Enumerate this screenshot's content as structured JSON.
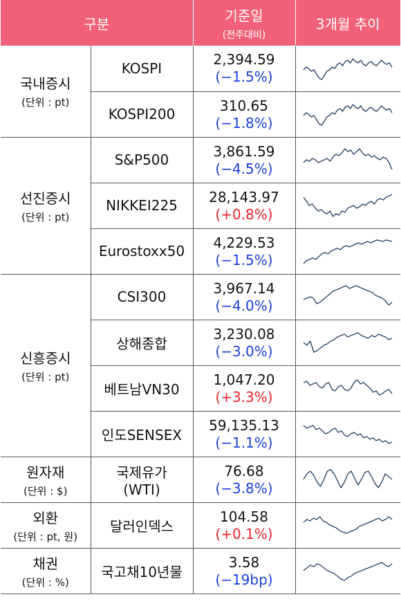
{
  "header": {
    "col1": "구분",
    "col3_main": "기준일",
    "col3_sub": "(전주대비)",
    "col4": "3개월 추이"
  },
  "groups": [
    {
      "name": "국내증시",
      "unit": "(단위 : pt)"
    },
    {
      "name": "선진증시",
      "unit": "(단위 : pt)"
    },
    {
      "name": "신흥증시",
      "unit": "(단위 : pt)"
    },
    {
      "name": "원자재",
      "unit": "(단위 : $)"
    },
    {
      "name": "외환",
      "unit": "(단위 : pt, 원)"
    },
    {
      "name": "채권",
      "unit": "(단위 : %)"
    }
  ],
  "rows": [
    {
      "name": "KOSPI",
      "value": "2,394.59",
      "change": "(−1.5%)",
      "dir": "neg"
    },
    {
      "name": "KOSPI200",
      "value": "310.65",
      "change": "(−1.8%)",
      "dir": "neg"
    },
    {
      "name": "S&P500",
      "value": "3,861.59",
      "change": "(−4.5%)",
      "dir": "neg"
    },
    {
      "name": "NIKKEI225",
      "value": "28,143.97",
      "change": "(+0.8%)",
      "dir": "pos"
    },
    {
      "name": "Eurostoxx50",
      "value": "4,229.53",
      "change": "(−1.5%)",
      "dir": "neg"
    },
    {
      "name": "CSI300",
      "value": "3,967.14",
      "change": "(−4.0%)",
      "dir": "neg"
    },
    {
      "name": "상해종합",
      "value": "3,230.08",
      "change": "(−3.0%)",
      "dir": "neg"
    },
    {
      "name": "베트남VN30",
      "value": "1,047.20",
      "change": "(+3.3%)",
      "dir": "pos"
    },
    {
      "name": "인도SENSEX",
      "value": "59,135.13",
      "change": "(−1.1%)",
      "dir": "neg"
    },
    {
      "name": "국제유가\n(WTI)",
      "value": "76.68",
      "change": "(−3.8%)",
      "dir": "neg"
    },
    {
      "name": "달러인덱스",
      "value": "104.58",
      "change": "(+0.1%)",
      "dir": "pos"
    },
    {
      "name": "국고채10년물",
      "value": "3.58",
      "change": "(−19bp)",
      "dir": "neg"
    }
  ],
  "colors": {
    "header_bg": "#f2617a",
    "negative": "#1a3fd6",
    "positive": "#e8232a",
    "sparkline": "#2e4565"
  }
}
